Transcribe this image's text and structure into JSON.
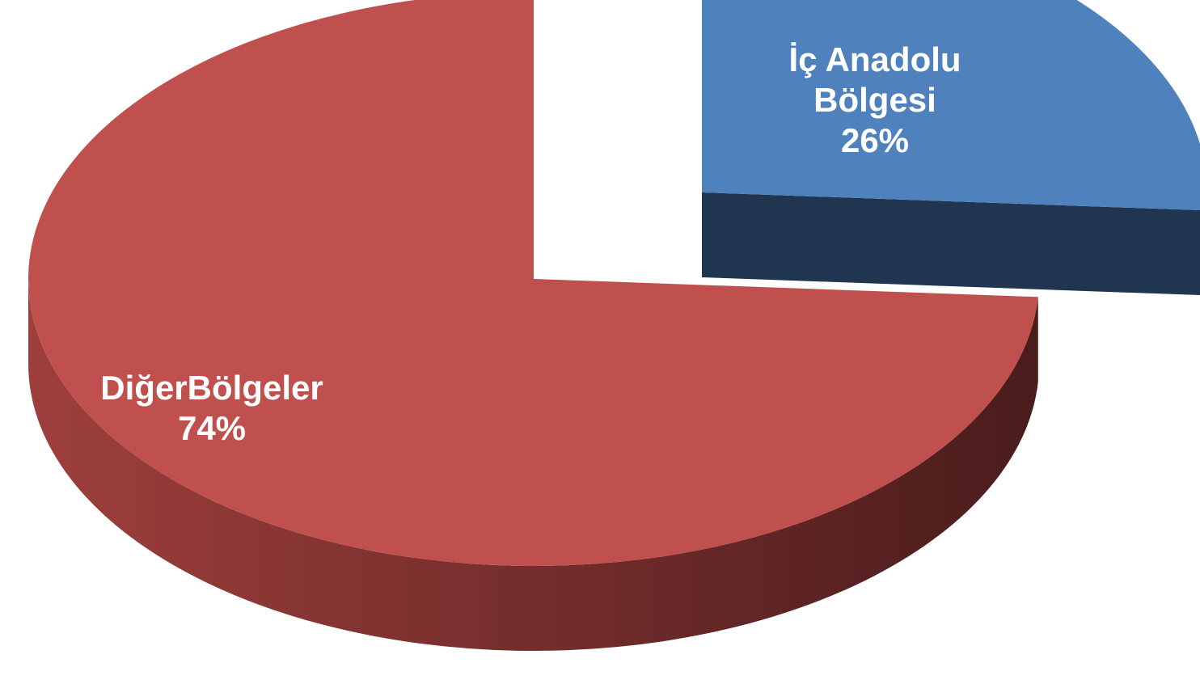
{
  "chart_data": {
    "type": "pie",
    "style": "3d-exploded",
    "categories": [
      "İç Anadolu Bölgesi",
      "DiğerBölgeler"
    ],
    "values": [
      26,
      74
    ],
    "unit": "%",
    "label_lines": [
      [
        "İç Anadolu",
        "Bölgesi",
        "26%"
      ],
      [
        "DiğerBölgeler",
        "74%"
      ]
    ],
    "colors": {
      "slice_top": [
        "#4F81BD",
        "#C0504D"
      ],
      "slice_side_light": [
        "#1F3550",
        "#9E3F3C"
      ],
      "slice_side_dark": [
        "#1F3550",
        "#4A1C1C"
      ],
      "label_text": "#FFFFFF"
    },
    "title": "",
    "legend": "none"
  }
}
